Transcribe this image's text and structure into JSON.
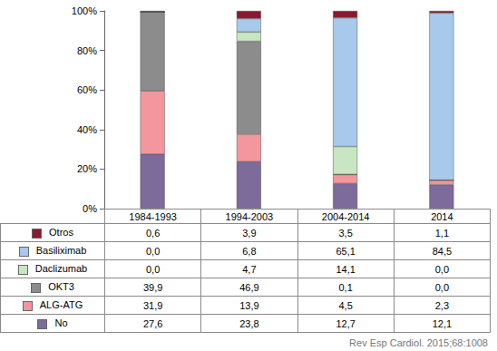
{
  "chart_data": {
    "type": "bar",
    "stacked": true,
    "grid": false,
    "tick_labels": "y",
    "categories": [
      "1984-1993",
      "1994-2003",
      "2004-2014",
      "2014"
    ],
    "ylim": [
      0,
      100
    ],
    "yticks": [
      {
        "value": 0,
        "label": "0%"
      },
      {
        "value": 20,
        "label": "20%"
      },
      {
        "value": 40,
        "label": "40%"
      },
      {
        "value": 60,
        "label": "60%"
      },
      {
        "value": 80,
        "label": "80%"
      },
      {
        "value": 100,
        "label": "100%"
      }
    ],
    "series": [
      {
        "name": "Otros",
        "color": "#8b1a2e",
        "values": [
          0.6,
          3.9,
          3.5,
          1.1
        ],
        "value_labels": [
          "0,6",
          "3,9",
          "3,5",
          "1,1"
        ]
      },
      {
        "name": "Basiliximab",
        "color": "#a9c9ec",
        "values": [
          0.0,
          6.8,
          65.1,
          84.5
        ],
        "value_labels": [
          "0,0",
          "6,8",
          "65,1",
          "84,5"
        ]
      },
      {
        "name": "Daclizumab",
        "color": "#c8e6c1",
        "values": [
          0.0,
          4.7,
          14.1,
          0.0
        ],
        "value_labels": [
          "0,0",
          "4,7",
          "14,1",
          "0,0"
        ]
      },
      {
        "name": "OKT3",
        "color": "#8c8c8c",
        "values": [
          39.9,
          46.9,
          0.1,
          0.0
        ],
        "value_labels": [
          "39,9",
          "46,9",
          "0,1",
          "0,0"
        ]
      },
      {
        "name": "ALG-ATG",
        "color": "#f4969e",
        "values": [
          31.9,
          13.9,
          4.5,
          2.3
        ],
        "value_labels": [
          "31,9",
          "13,9",
          "4,5",
          "2,3"
        ]
      },
      {
        "name": "No",
        "color": "#7c6b9b",
        "values": [
          27.6,
          23.8,
          12.7,
          12.1
        ],
        "value_labels": [
          "27,6",
          "23,8",
          "12,7",
          "12,1"
        ]
      }
    ],
    "annotations": [
      "Rev Esp Cardiol. 2015;68:1008"
    ]
  }
}
